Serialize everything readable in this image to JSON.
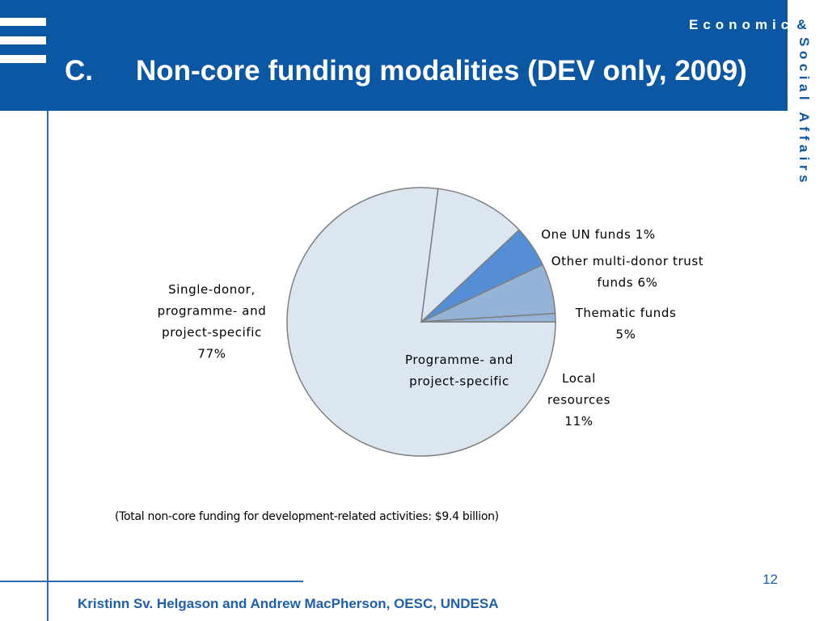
{
  "slide": {
    "title_letter": "C.",
    "title_text": "Non-core funding modalities (DEV only, 2009)",
    "org_line1": "Economic",
    "org_amp": "&",
    "org_vertical": "Social Affairs",
    "note": "(Total non-core  funding for development-related activities: $9.4 billion)",
    "page_number": "12",
    "footer": "Kristinn Sv. Helgason and Andrew MacPherson, OESC, UNDESA"
  },
  "colors": {
    "header": "#0c57a3",
    "accent": "#2e6db6",
    "slice_light": "#dce6f1",
    "slice_mid": "#95b3d7",
    "slice_bright": "#558ed5",
    "outline": "#7f7f7f"
  },
  "chart_data": {
    "type": "pie",
    "title": "",
    "total_label": "$9.4 billion",
    "group_label": [
      "Programme- and",
      "project-specific"
    ],
    "slices": [
      {
        "name": "One UN funds",
        "value": 1,
        "label_lines": [
          "One UN funds  1%"
        ],
        "color": "#95b3d7"
      },
      {
        "name": "Other multi-donor trust funds",
        "value": 6,
        "label_lines": [
          "Other multi-donor trust",
          "funds  6%"
        ],
        "color": "#95b3d7"
      },
      {
        "name": "Thematic funds",
        "value": 5,
        "label_lines": [
          "Thematic funds",
          "5%"
        ],
        "color": "#558ed5"
      },
      {
        "name": "Local resources",
        "value": 11,
        "label_lines": [
          "Local",
          "resources",
          "11%"
        ],
        "color": "#dce6f1"
      },
      {
        "name": "Single-donor, programme- and project-specific",
        "value": 77,
        "label_lines": [
          "Single-donor,",
          "programme- and",
          "project-specific",
          "77%"
        ],
        "color": "#dce6f1"
      }
    ]
  }
}
